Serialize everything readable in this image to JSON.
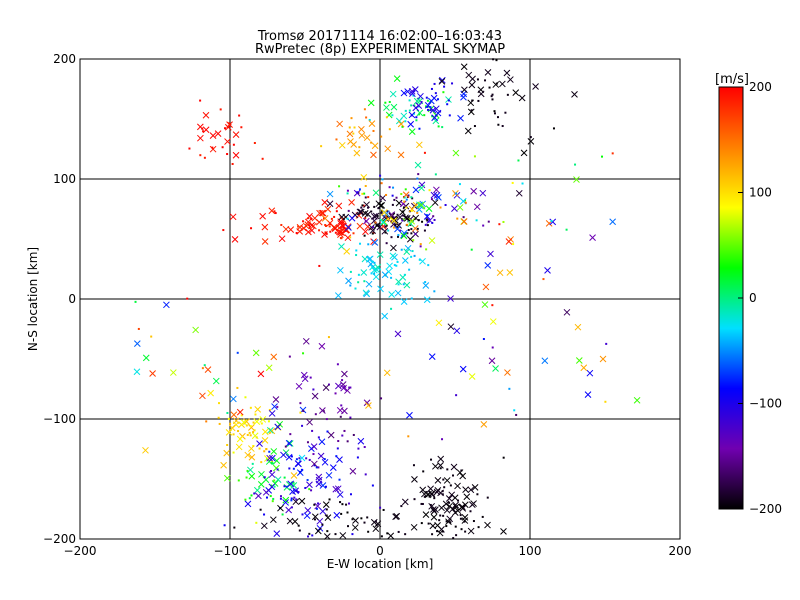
{
  "chart_data": {
    "type": "scatter",
    "title": "Tromsø 20171114 16:02:00–16:03:43",
    "subtitle": "RwPretec (8p) EXPERIMENTAL SKYMAP",
    "xlabel": "E-W location [km]",
    "ylabel": "N-S location [km]",
    "xlim": [
      -200,
      200
    ],
    "ylim": [
      -200,
      200
    ],
    "x_ticks": [
      -200,
      -100,
      0,
      100,
      200
    ],
    "y_ticks": [
      -200,
      -100,
      0,
      100,
      200
    ],
    "x_tick_labels": [
      "−200",
      "−100",
      "0",
      "100",
      "200"
    ],
    "y_tick_labels": [
      "−200",
      "−100",
      "0",
      "100",
      "200"
    ],
    "grid": true,
    "marker_styles": [
      "x",
      "dot"
    ],
    "colorbar": {
      "label": "[m/s]",
      "min": -200,
      "max": 200,
      "ticks": [
        200,
        100,
        0,
        -100,
        -200
      ],
      "tick_labels": [
        "200",
        "100",
        "0",
        "−100",
        "−200"
      ],
      "colors": [
        "#000000",
        "#7000b0",
        "#0000ff",
        "#00e0ff",
        "#00ff00",
        "#ffff00",
        "#ff8000",
        "#ff0000"
      ]
    },
    "clusters": [
      {
        "name": "red-north-west",
        "x": -105,
        "y": 140,
        "sx": 12,
        "sy": 14,
        "n": 30,
        "v": 195,
        "dv": 10
      },
      {
        "name": "green-top",
        "x": 20,
        "y": 160,
        "sx": 12,
        "sy": 10,
        "n": 40,
        "v": 5,
        "dv": 30
      },
      {
        "name": "blue-top",
        "x": 35,
        "y": 160,
        "sx": 10,
        "sy": 10,
        "n": 40,
        "v": -95,
        "dv": 20
      },
      {
        "name": "black-top",
        "x": 75,
        "y": 165,
        "sx": 18,
        "sy": 18,
        "n": 45,
        "v": -195,
        "dv": 5
      },
      {
        "name": "orange-upper",
        "x": -10,
        "y": 135,
        "sx": 12,
        "sy": 10,
        "n": 30,
        "v": 130,
        "dv": 30
      },
      {
        "name": "red-mid",
        "x": -40,
        "y": 62,
        "sx": 22,
        "sy": 8,
        "n": 90,
        "v": 190,
        "dv": 15
      },
      {
        "name": "black-mid",
        "x": 5,
        "y": 68,
        "sx": 14,
        "sy": 10,
        "n": 100,
        "v": -190,
        "dv": 15
      },
      {
        "name": "mixed-mid",
        "x": 20,
        "y": 75,
        "sx": 30,
        "sy": 16,
        "n": 120,
        "v": 0,
        "dv": 160
      },
      {
        "name": "cyan-mid",
        "x": 5,
        "y": 25,
        "sx": 14,
        "sy": 14,
        "n": 70,
        "v": -25,
        "dv": 20
      },
      {
        "name": "yellow-lower-left",
        "x": -88,
        "y": -115,
        "sx": 10,
        "sy": 14,
        "n": 60,
        "v": 100,
        "dv": 20
      },
      {
        "name": "green-lower-left",
        "x": -75,
        "y": -150,
        "sx": 12,
        "sy": 15,
        "n": 40,
        "v": 20,
        "dv": 30
      },
      {
        "name": "blue-lower-left",
        "x": -50,
        "y": -150,
        "sx": 18,
        "sy": 25,
        "n": 110,
        "v": -100,
        "dv": 30
      },
      {
        "name": "purple-lower",
        "x": -35,
        "y": -90,
        "sx": 20,
        "sy": 25,
        "n": 50,
        "v": -150,
        "dv": 20
      },
      {
        "name": "black-lower-right",
        "x": 45,
        "y": -170,
        "sx": 15,
        "sy": 20,
        "n": 110,
        "v": -195,
        "dv": 5
      },
      {
        "name": "black-bottom",
        "x": -20,
        "y": -185,
        "sx": 30,
        "sy": 10,
        "n": 60,
        "v": -195,
        "dv": 5
      },
      {
        "name": "scatter-right",
        "x": 70,
        "y": -40,
        "sx": 45,
        "sy": 40,
        "n": 40,
        "v": 0,
        "dv": 200
      },
      {
        "name": "scatter-left",
        "x": -120,
        "y": -60,
        "sx": 40,
        "sy": 45,
        "n": 35,
        "v": 60,
        "dv": 150
      },
      {
        "name": "scatter-upper-right",
        "x": 110,
        "y": 70,
        "sx": 40,
        "sy": 25,
        "n": 30,
        "v": 0,
        "dv": 200
      }
    ]
  }
}
